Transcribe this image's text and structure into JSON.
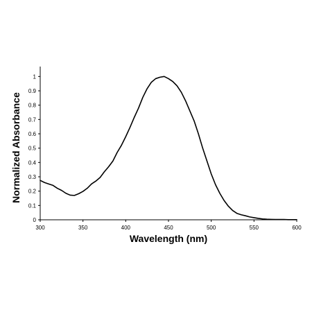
{
  "chart_data": {
    "type": "line",
    "title": "",
    "xlabel": "Wavelength (nm)",
    "ylabel": "Normalized Absorbance",
    "xlim": [
      300,
      600
    ],
    "ylim": [
      0,
      1.05
    ],
    "x_ticks": [
      300,
      350,
      400,
      450,
      500,
      550,
      600
    ],
    "y_ticks": [
      0,
      0.1,
      0.2,
      0.3,
      0.4,
      0.5,
      0.6,
      0.7,
      0.8,
      0.9,
      1
    ],
    "grid": false,
    "legend": "none",
    "line_color": "#000000",
    "series": [
      {
        "x": [
          300,
          305,
          310,
          315,
          320,
          325,
          330,
          335,
          340,
          345,
          350,
          355,
          360,
          365,
          370,
          375,
          380,
          385,
          390,
          395,
          400,
          405,
          410,
          415,
          420,
          425,
          430,
          435,
          440,
          445,
          450,
          455,
          460,
          465,
          470,
          475,
          480,
          485,
          490,
          495,
          500,
          505,
          510,
          515,
          520,
          525,
          530,
          535,
          540,
          545,
          550,
          555,
          560,
          565,
          570,
          575,
          580,
          585,
          590,
          595,
          600
        ],
        "y": [
          0.275,
          0.26,
          0.25,
          0.24,
          0.22,
          0.205,
          0.185,
          0.172,
          0.17,
          0.182,
          0.198,
          0.22,
          0.25,
          0.27,
          0.295,
          0.335,
          0.37,
          0.41,
          0.47,
          0.52,
          0.58,
          0.645,
          0.715,
          0.78,
          0.855,
          0.915,
          0.96,
          0.985,
          0.995,
          1.0,
          0.985,
          0.965,
          0.935,
          0.89,
          0.83,
          0.76,
          0.69,
          0.6,
          0.5,
          0.41,
          0.32,
          0.245,
          0.185,
          0.135,
          0.095,
          0.065,
          0.045,
          0.035,
          0.028,
          0.02,
          0.015,
          0.01,
          0.006,
          0.004,
          0.003,
          0.002,
          0.002,
          0.002,
          0.001,
          0.001,
          0.001
        ]
      }
    ]
  }
}
